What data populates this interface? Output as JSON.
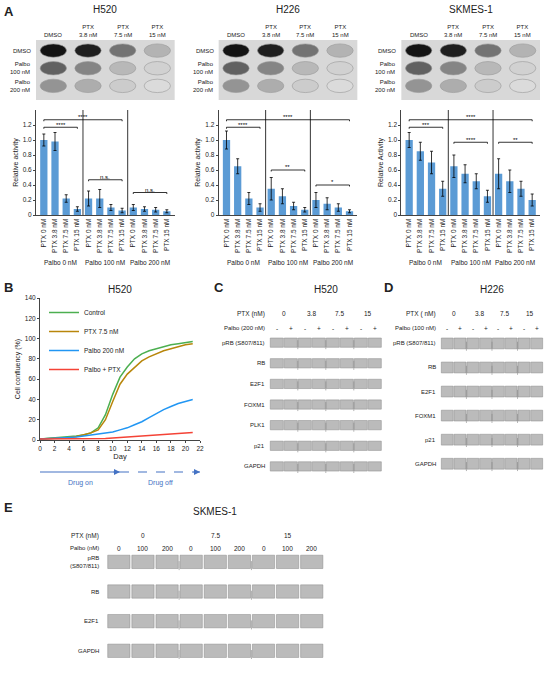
{
  "chart_data": [
    {
      "type": "bar",
      "panel": "A",
      "title": "H520",
      "categories": [
        "PTX 0 nM",
        "PTX 3.8 nM",
        "PTX 7.5 nM",
        "PTX 15 nM",
        "PTX 0 nM",
        "PTX 3.8 nM",
        "PTX 7.5 nM",
        "PTX 15 nM",
        "PTX 0 nM",
        "PTX 3.8 nM",
        "PTX 7.5 nM",
        "PTX 15 nM"
      ],
      "groups": [
        "Palbo 0 nM",
        "Palbo 100 nM",
        "Palbo 200 nM"
      ],
      "values": [
        1.0,
        0.98,
        0.22,
        0.08,
        0.22,
        0.22,
        0.1,
        0.06,
        0.1,
        0.08,
        0.07,
        0.05
      ],
      "errors": [
        0.08,
        0.12,
        0.05,
        0.03,
        0.1,
        0.12,
        0.04,
        0.03,
        0.04,
        0.03,
        0.03,
        0.02
      ],
      "color": "#5b9bd5",
      "ylabel": "Relative activity",
      "ylim": [
        0,
        1.4
      ],
      "yticks": [
        0,
        0.2,
        0.4,
        0.6,
        0.8,
        {
          "value": 1.0,
          "label": "1.0"
        },
        1.2
      ],
      "grid": false,
      "brackets": [
        {
          "from": 0,
          "to": 3,
          "y": 1.15,
          "label": "****"
        },
        {
          "from": 0,
          "to": 7,
          "y": 1.25,
          "label": "****"
        },
        {
          "from": 4,
          "to": 7,
          "y": 0.45,
          "label": "n.s."
        },
        {
          "from": 8,
          "to": 11,
          "y": 0.28,
          "label": "n.s."
        }
      ],
      "colony": {
        "columns": [
          "DMSO",
          "PTX\n3.8 nM",
          "PTX\n7.5 nM",
          "PTX\n15 nM"
        ],
        "rows": [
          "DMSO",
          "Palbo\n100 nM",
          "Palbo\n200 nM"
        ],
        "darkness": [
          [
            0.08,
            0.12,
            0.45,
            0.7
          ],
          [
            0.38,
            0.52,
            0.72,
            0.82
          ],
          [
            0.58,
            0.68,
            0.8,
            0.86
          ]
        ],
        "background": "#d8d8d8",
        "edge": "#999999"
      }
    },
    {
      "type": "bar",
      "title": "H226",
      "categories": [
        "PTX 0 nM",
        "PTX 3.8 nM",
        "PTX 7.5 nM",
        "PTX 15 nM",
        "PTX 0 nM",
        "PTX 3.8 nM",
        "PTX 7.5 nM",
        "PTX 15 nM",
        "PTX 0 nM",
        "PTX 3.8 nM",
        "PTX 7.5 nM",
        "PTX 15 nM"
      ],
      "groups": [
        "Palbo 0 nM",
        "Palbo 100 nM",
        "Palbo 200 nM"
      ],
      "values": [
        1.0,
        0.65,
        0.22,
        0.1,
        0.35,
        0.25,
        0.12,
        0.07,
        0.2,
        0.15,
        0.1,
        0.05
      ],
      "errors": [
        0.12,
        0.1,
        0.08,
        0.05,
        0.15,
        0.1,
        0.05,
        0.03,
        0.1,
        0.08,
        0.05,
        0.02
      ],
      "color": "#5b9bd5",
      "ylabel": "Relative activity",
      "ylim": [
        0,
        1.4
      ],
      "yticks": [
        0,
        0.2,
        0.4,
        0.6,
        0.8,
        {
          "value": 1.0,
          "label": "1.0"
        },
        1.2
      ],
      "grid": false,
      "brackets": [
        {
          "from": 0,
          "to": 3,
          "y": 1.15,
          "label": "****"
        },
        {
          "from": 0,
          "to": 11,
          "y": 1.25,
          "label": "****"
        },
        {
          "from": 4,
          "to": 7,
          "y": 0.58,
          "label": "**"
        },
        {
          "from": 8,
          "to": 11,
          "y": 0.38,
          "label": "*"
        }
      ],
      "colony": {
        "columns": [
          "DMSO",
          "PTX\n3.8 nM",
          "PTX\n7.5 nM",
          "PTX\n15 nM"
        ],
        "rows": [
          "DMSO",
          "Palbo\n100 nM",
          "Palbo\n200 nM"
        ],
        "darkness": [
          [
            0.08,
            0.12,
            0.45,
            0.7
          ],
          [
            0.38,
            0.52,
            0.72,
            0.82
          ],
          [
            0.58,
            0.68,
            0.8,
            0.86
          ]
        ],
        "background": "#d8d8d8",
        "edge": "#999999"
      }
    },
    {
      "type": "bar",
      "title": "SKMES-1",
      "categories": [
        "PTX 0 nM",
        "PTX 3.8 nM",
        "PTX 7.5 nM",
        "PTX 15 nM",
        "PTX 0 nM",
        "PTX 3.8 nM",
        "PTX 7.5 nM",
        "PTX 15 nM",
        "PTX 0 nM",
        "PTX 3.8 nM",
        "PTX 7.5 nM",
        "PTX 15 nM"
      ],
      "groups": [
        "Palbo 0 nM",
        "Palbo 100 nM",
        "Palbo 200 nM"
      ],
      "values": [
        1.0,
        0.85,
        0.7,
        0.35,
        0.65,
        0.55,
        0.45,
        0.25,
        0.55,
        0.45,
        0.35,
        0.2
      ],
      "errors": [
        0.1,
        0.12,
        0.15,
        0.1,
        0.15,
        0.12,
        0.1,
        0.08,
        0.2,
        0.15,
        0.1,
        0.08
      ],
      "color": "#5b9bd5",
      "ylabel": "Relative Activity",
      "ylim": [
        0,
        1.4
      ],
      "yticks": [
        0,
        0.2,
        0.4,
        0.6,
        0.8,
        {
          "value": 1.0,
          "label": "1.0"
        },
        1.2
      ],
      "grid": false,
      "brackets": [
        {
          "from": 0,
          "to": 3,
          "y": 1.15,
          "label": "***"
        },
        {
          "from": 0,
          "to": 11,
          "y": 1.25,
          "label": "****"
        },
        {
          "from": 4,
          "to": 7,
          "y": 0.95,
          "label": "****"
        },
        {
          "from": 8,
          "to": 11,
          "y": 0.95,
          "label": "**"
        }
      ],
      "colony": {
        "columns": [
          "DMSO",
          "PTX\n3.8 nM",
          "PTX\n7.5 nM",
          "PTX\n15 nM"
        ],
        "rows": [
          "DMSO",
          "Palbo\n100 nM",
          "Palbo\n200 nM"
        ],
        "darkness": [
          [
            0.08,
            0.12,
            0.45,
            0.7
          ],
          [
            0.38,
            0.52,
            0.72,
            0.82
          ],
          [
            0.58,
            0.68,
            0.8,
            0.86
          ]
        ],
        "background": "#d8d8d8",
        "edge": "#999999"
      }
    },
    {
      "type": "line",
      "panel": "B",
      "title": "H520",
      "xlabel": "Day",
      "ylabel": "Cell confluency (%)",
      "x": [
        0,
        1,
        2,
        3,
        4,
        5,
        6,
        7,
        8,
        9,
        10,
        11,
        12,
        13,
        14,
        15,
        16,
        17,
        18,
        19,
        20,
        21
      ],
      "series": [
        {
          "name": "Control",
          "color": "#4caf50",
          "values": [
            1,
            1.5,
            2,
            2.5,
            3,
            4,
            5,
            7,
            12,
            25,
            45,
            62,
            72,
            80,
            85,
            88,
            90,
            92,
            94,
            95,
            96,
            97
          ]
        },
        {
          "name": "PTX 7.5 nM",
          "color": "#b8860b",
          "values": [
            1,
            1.2,
            1.5,
            2,
            2.5,
            3.5,
            5,
            7,
            10,
            20,
            38,
            55,
            65,
            72,
            78,
            82,
            85,
            88,
            90,
            92,
            94,
            95
          ]
        },
        {
          "name": "Palbo 200 nM",
          "color": "#2196f3",
          "values": [
            1,
            1.2,
            1.5,
            2,
            2.5,
            3,
            4,
            5,
            6,
            7,
            8,
            10,
            12,
            15,
            18,
            22,
            26,
            30,
            33,
            36,
            38,
            40
          ]
        },
        {
          "name": "Palbo + PTX",
          "color": "#f44336",
          "values": [
            1,
            1,
            1,
            1,
            1,
            1,
            1,
            1,
            1,
            1.5,
            2,
            2.5,
            3,
            3.5,
            4,
            4.5,
            5,
            5.5,
            6,
            6.5,
            7,
            7.5
          ]
        }
      ],
      "xlim": [
        0,
        22
      ],
      "ylim": [
        0,
        140
      ],
      "xticks": [
        0,
        2,
        4,
        6,
        8,
        10,
        12,
        14,
        16,
        18,
        20,
        22
      ],
      "yticks": [
        0,
        20,
        40,
        60,
        80,
        100,
        120,
        140
      ],
      "grid": false,
      "legend": "upper left",
      "arrows": [
        {
          "from": 0,
          "to": 11,
          "label": "Drug on",
          "line_style": "solid"
        },
        {
          "from": 11,
          "to": 22,
          "label": "Drug off",
          "line_style": "dashed"
        }
      ],
      "arrow_color": "#4472c4"
    },
    {
      "type": "blot",
      "panel": "C",
      "title": "H520",
      "header_label": "PTX (nM)",
      "header_values": [
        "0",
        "3.8",
        "7.5",
        "15"
      ],
      "lane_label": "Palbo (200 nM)",
      "lanes": [
        "-",
        "+",
        "-",
        "+",
        "-",
        "+",
        "-",
        "+"
      ],
      "bands": [
        "pRB (S807/811)",
        "RB",
        "E2F1",
        "FOXM1",
        "PLK1",
        "p21",
        "GAPDH"
      ],
      "color": "#bbbbbb",
      "edge_color": "#888888"
    },
    {
      "type": "blot",
      "panel": "D",
      "title": "H226",
      "header_label": "PTX ( nM)",
      "header_values": [
        "0",
        "3.8",
        "7.5",
        "15"
      ],
      "lane_label": "Palbo (100 nM)",
      "lanes": [
        "-",
        "+",
        "-",
        "+",
        "-",
        "+",
        "-",
        "+"
      ],
      "bands": [
        "pRB (S807/811)",
        "RB",
        "E2F1",
        "FOXM1",
        "p21",
        "GAPDH"
      ],
      "color": "#bbbbbb",
      "edge_color": "#888888"
    },
    {
      "type": "blot",
      "panel": "E",
      "title": "SKMES-1",
      "header_label": "PTX (nM)",
      "header_values": [
        "0",
        "7.5",
        "15"
      ],
      "lane_label": "Palbo (nM)",
      "lanes": [
        "0",
        "100",
        "200",
        "0",
        "100",
        "200",
        "0",
        "100",
        "200"
      ],
      "bands": [
        "pRB\n(S807/811)",
        "RB",
        "E2F1",
        "GAPDH"
      ],
      "color": "#bbbbbb",
      "edge_color": "#888888"
    }
  ]
}
